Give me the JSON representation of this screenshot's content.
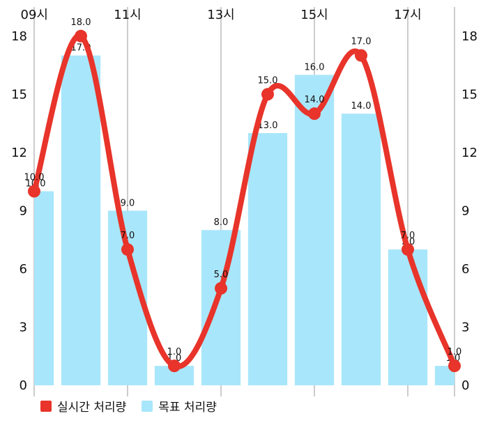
{
  "chart_data": {
    "type": "bar+line",
    "x_tick_labels": [
      "09시",
      "11시",
      "13시",
      "15시",
      "17시"
    ],
    "x_tick_hours": [
      9,
      11,
      13,
      15,
      17
    ],
    "x_range": [
      9,
      18
    ],
    "y_ticks": [
      0,
      3,
      6,
      9,
      12,
      15,
      18
    ],
    "ylim": [
      0,
      19.5
    ],
    "grid": "vertical-only",
    "bar_series": {
      "name": "목표 처리량",
      "color": "#a8e6fb",
      "x": [
        9,
        10,
        11,
        12,
        13,
        14,
        15,
        16,
        17,
        18
      ],
      "values": [
        10,
        17,
        9,
        1,
        8,
        13,
        16,
        14,
        7,
        1
      ],
      "labels": [
        "10.0",
        "17.0",
        "9.0",
        "1.0",
        "8.0",
        "13.0",
        "16.0",
        "14.0",
        "7.0",
        "1.0"
      ]
    },
    "line_series": {
      "name": "실시간 처리량",
      "color": "#e8342a",
      "x": [
        9,
        10,
        11,
        12,
        13,
        14,
        15,
        16,
        17,
        18
      ],
      "values": [
        10,
        18,
        7,
        1,
        5,
        15,
        14,
        17,
        7,
        1
      ],
      "labels": [
        "10.0",
        "18.0",
        "7.0",
        "1.0",
        "5.0",
        "15.0",
        "14.0",
        "17.0",
        "7.0",
        "1.0"
      ]
    },
    "legend_position": "bottom-left"
  }
}
